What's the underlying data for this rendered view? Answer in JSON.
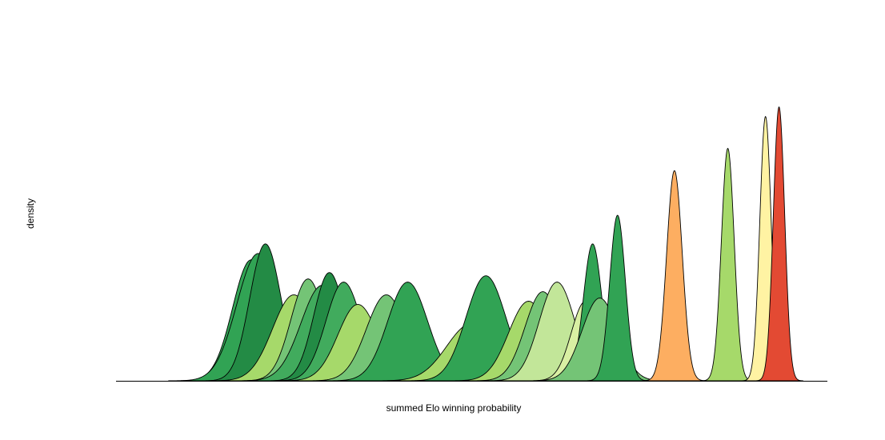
{
  "chart_data": {
    "type": "area",
    "title": "",
    "xlabel": "summed Elo winning probability",
    "ylabel": "density",
    "x_ticks_shown": false,
    "y_ticks_shown": false,
    "grid": false,
    "xlim": [
      0,
      1
    ],
    "ylim": [
      0,
      1
    ],
    "series": [
      {
        "mean": 0.19,
        "sd": 0.026,
        "peak": 0.38,
        "color": "#31a354"
      },
      {
        "mean": 0.2,
        "sd": 0.03,
        "peak": 0.4,
        "color": "#31a354"
      },
      {
        "mean": 0.21,
        "sd": 0.022,
        "peak": 0.43,
        "color": "#238b45"
      },
      {
        "mean": 0.25,
        "sd": 0.03,
        "peak": 0.27,
        "color": "#a6d96a"
      },
      {
        "mean": 0.27,
        "sd": 0.024,
        "peak": 0.32,
        "color": "#74c476"
      },
      {
        "mean": 0.29,
        "sd": 0.03,
        "peak": 0.3,
        "color": "#41ab5d"
      },
      {
        "mean": 0.3,
        "sd": 0.022,
        "peak": 0.34,
        "color": "#238b45"
      },
      {
        "mean": 0.32,
        "sd": 0.025,
        "peak": 0.31,
        "color": "#41ab5d"
      },
      {
        "mean": 0.34,
        "sd": 0.028,
        "peak": 0.24,
        "color": "#a6d96a"
      },
      {
        "mean": 0.38,
        "sd": 0.028,
        "peak": 0.27,
        "color": "#74c476"
      },
      {
        "mean": 0.41,
        "sd": 0.028,
        "peak": 0.31,
        "color": "#31a354"
      },
      {
        "mean": 0.5,
        "sd": 0.035,
        "peak": 0.18,
        "color": "#a6d96a"
      },
      {
        "mean": 0.52,
        "sd": 0.028,
        "peak": 0.33,
        "color": "#31a354"
      },
      {
        "mean": 0.58,
        "sd": 0.028,
        "peak": 0.25,
        "color": "#a6d96a"
      },
      {
        "mean": 0.6,
        "sd": 0.025,
        "peak": 0.28,
        "color": "#74c476"
      },
      {
        "mean": 0.62,
        "sd": 0.025,
        "peak": 0.31,
        "color": "#c2e699"
      },
      {
        "mean": 0.66,
        "sd": 0.02,
        "peak": 0.25,
        "color": "#d9f0a3"
      },
      {
        "mean": 0.67,
        "sd": 0.013,
        "peak": 0.43,
        "color": "#31a354"
      },
      {
        "mean": 0.68,
        "sd": 0.025,
        "peak": 0.26,
        "color": "#74c476"
      },
      {
        "mean": 0.705,
        "sd": 0.011,
        "peak": 0.52,
        "color": "#31a354"
      },
      {
        "mean": 0.785,
        "sd": 0.011,
        "peak": 0.66,
        "color": "#fdae61"
      },
      {
        "mean": 0.86,
        "sd": 0.009,
        "peak": 0.73,
        "color": "#a6d96a"
      },
      {
        "mean": 0.913,
        "sd": 0.008,
        "peak": 0.83,
        "color": "#fff3a3"
      },
      {
        "mean": 0.932,
        "sd": 0.008,
        "peak": 0.86,
        "color": "#e34a33"
      }
    ]
  }
}
